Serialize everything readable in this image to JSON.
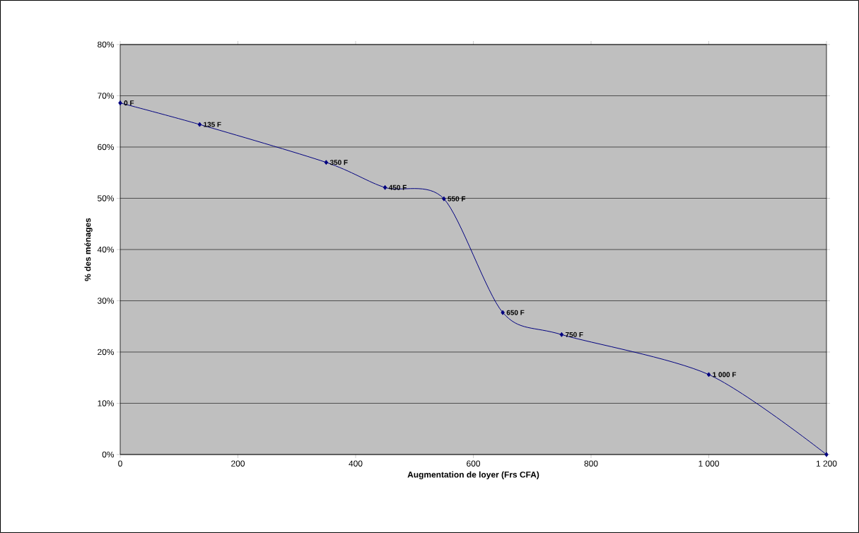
{
  "chart_data": {
    "type": "line",
    "xlabel": "Augmentation de loyer (Frs CFA)",
    "ylabel": "% des ménages",
    "x": [
      0,
      135,
      350,
      450,
      550,
      650,
      750,
      1000,
      1200
    ],
    "values": [
      68.6,
      64.4,
      57.0,
      52.1,
      49.9,
      27.7,
      23.4,
      15.6,
      0
    ],
    "color": "#000080",
    "marker": "diamond",
    "line_style": "solid",
    "grid": "y",
    "xlim": [
      0,
      1200
    ],
    "ylim": [
      0,
      80
    ],
    "xticks": [
      0,
      200,
      400,
      600,
      800,
      {
        "value": 1000,
        "label": "1 000"
      },
      {
        "value": 1200,
        "label": "1 200"
      }
    ],
    "yticks": [
      {
        "value": 0,
        "label": "0%"
      },
      {
        "value": 10,
        "label": "10%"
      },
      {
        "value": 20,
        "label": "20%"
      },
      {
        "value": 30,
        "label": "30%"
      },
      {
        "value": 40,
        "label": "40%"
      },
      {
        "value": 50,
        "label": "50%"
      },
      {
        "value": 60,
        "label": "60%"
      },
      {
        "value": 70,
        "label": "70%"
      },
      {
        "value": 80,
        "label": "80%"
      }
    ],
    "annotations": [
      {
        "text": "0 F",
        "x": 0,
        "y": 68.6
      },
      {
        "text": "135 F",
        "x": 135,
        "y": 64.4
      },
      {
        "text": "350 F",
        "x": 350,
        "y": 57.0
      },
      {
        "text": "450 F",
        "x": 450,
        "y": 52.1
      },
      {
        "text": "550 F",
        "x": 550,
        "y": 49.9
      },
      {
        "text": "650 F",
        "x": 650,
        "y": 27.7
      },
      {
        "text": "750 F",
        "x": 750,
        "y": 23.4
      },
      {
        "text": "1 000 F",
        "x": 1000,
        "y": 15.6
      }
    ]
  }
}
